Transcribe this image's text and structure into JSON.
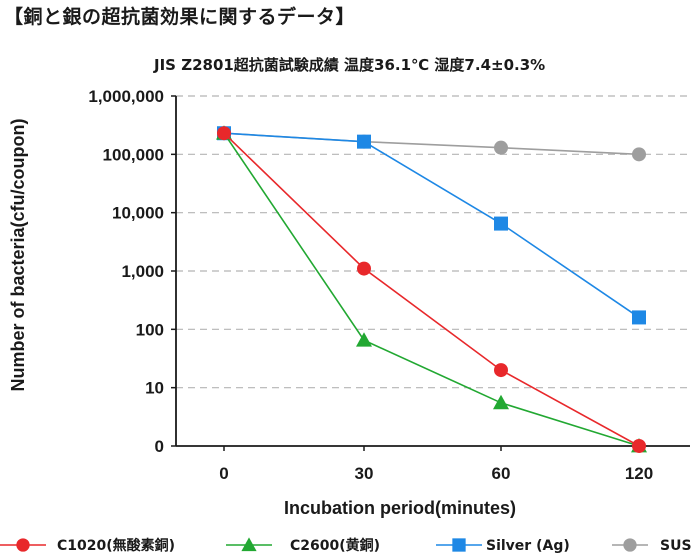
{
  "header": {
    "title": "【銅と銀の超抗菌効果に関するデータ】"
  },
  "chart_data": {
    "type": "line",
    "title": "JIS Z2801超抗菌試験成績 温度36.1℃ 湿度7.4±0.3%",
    "xlabel": "Incubation period(minutes)",
    "ylabel": "Number of bacteria(cfu/coupon)",
    "x": [
      0,
      30,
      60,
      120
    ],
    "x_tick_labels": [
      "0",
      "30",
      "60",
      "120"
    ],
    "y_scale": "log",
    "y_tick_labels": [
      "0",
      "10",
      "100",
      "1,000",
      "10,000",
      "100,000",
      "1,000,000"
    ],
    "ylim": [
      0,
      1000000
    ],
    "grid": "horizontal dashed",
    "legend_position": "bottom",
    "series": [
      {
        "name": "C1020(無酸素銅)",
        "values": [
          230000,
          1100,
          20,
          0
        ],
        "color": "#e8282b",
        "marker": "circle"
      },
      {
        "name": "C2600(黄銅)",
        "values": [
          230000,
          65,
          5.5,
          0
        ],
        "color": "#22a832",
        "marker": "triangle"
      },
      {
        "name": "Silver (Ag)",
        "values": [
          230000,
          165000,
          6500,
          160
        ],
        "color": "#1e88e5",
        "marker": "square"
      },
      {
        "name": "SUS",
        "values": [
          230000,
          165000,
          130000,
          100000
        ],
        "color": "#9e9e9e",
        "marker": "circle"
      }
    ]
  }
}
